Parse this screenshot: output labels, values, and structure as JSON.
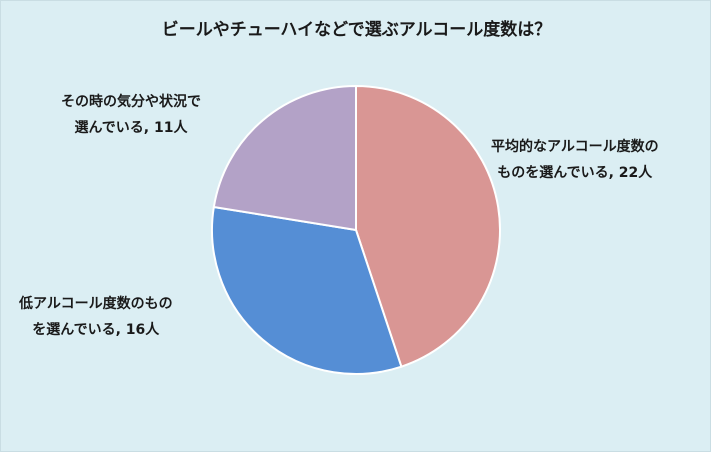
{
  "chart_data": {
    "type": "pie",
    "title": "ビールやチューハイなどで選ぶアルコール度数は？",
    "slices": [
      {
        "label_line1": "平均的なアルコール度数の",
        "label_line2": "ものを選んでいる, 22人",
        "value": 22,
        "color": "#d99694"
      },
      {
        "label_line1": "低アルコール度数のもの",
        "label_line2": "を選んでいる, 16人",
        "value": 16,
        "color": "#558ed5"
      },
      {
        "label_line1": "その時の気分や状況で",
        "label_line2": "選んでいる, 11人",
        "value": 11,
        "color": "#b3a2c7"
      }
    ]
  }
}
